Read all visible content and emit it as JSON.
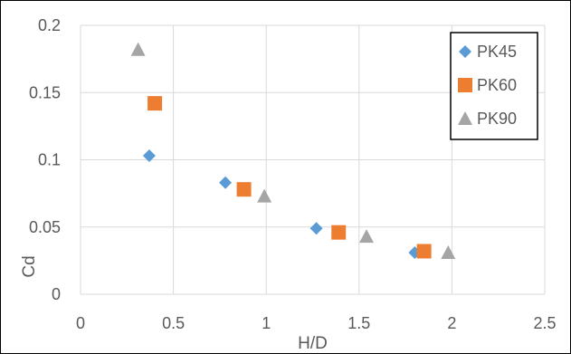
{
  "chart_data": {
    "type": "scatter",
    "title": "",
    "xlabel": "H/D",
    "ylabel": "Cd",
    "xlim": [
      0,
      2.5
    ],
    "ylim": [
      0,
      0.2
    ],
    "xticks": [
      "0",
      "0.5",
      "1",
      "1.5",
      "2",
      "2.5"
    ],
    "yticks": [
      "0",
      "0.05",
      "0.1",
      "0.15",
      "0.2"
    ],
    "grid": true,
    "legend_position": "top-right",
    "series": [
      {
        "name": "PK45",
        "color": "#5b9bd5",
        "marker": "diamond",
        "points": [
          {
            "x": 0.37,
            "y": 0.103
          },
          {
            "x": 0.78,
            "y": 0.083
          },
          {
            "x": 1.27,
            "y": 0.049
          },
          {
            "x": 1.8,
            "y": 0.031
          }
        ]
      },
      {
        "name": "PK60",
        "color": "#ed7d31",
        "marker": "square",
        "points": [
          {
            "x": 0.4,
            "y": 0.142
          },
          {
            "x": 0.88,
            "y": 0.078
          },
          {
            "x": 1.39,
            "y": 0.046
          },
          {
            "x": 1.85,
            "y": 0.032
          }
        ]
      },
      {
        "name": "PK90",
        "color": "#a5a5a5",
        "marker": "triangle",
        "points": [
          {
            "x": 0.31,
            "y": 0.182
          },
          {
            "x": 0.99,
            "y": 0.073
          },
          {
            "x": 1.54,
            "y": 0.043
          },
          {
            "x": 1.98,
            "y": 0.031
          }
        ]
      }
    ]
  }
}
